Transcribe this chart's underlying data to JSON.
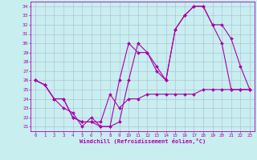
{
  "xlabel": "Windchill (Refroidissement éolien,°C)",
  "bg_color": "#c8eef0",
  "line_color": "#aa00aa",
  "grid_color": "#b0b8d0",
  "xlim": [
    -0.5,
    23.5
  ],
  "ylim": [
    20.5,
    34.5
  ],
  "xticks": [
    0,
    1,
    2,
    3,
    4,
    5,
    6,
    7,
    8,
    9,
    10,
    11,
    12,
    13,
    14,
    15,
    16,
    17,
    18,
    19,
    20,
    21,
    22,
    23
  ],
  "yticks": [
    21,
    22,
    23,
    24,
    25,
    26,
    27,
    28,
    29,
    30,
    31,
    32,
    33,
    34
  ],
  "line1_x": [
    0,
    1,
    2,
    3,
    4,
    5,
    6,
    7,
    8,
    9,
    10,
    11,
    12,
    13,
    14,
    15,
    16,
    17,
    18,
    19,
    20,
    21,
    22,
    23
  ],
  "line1_y": [
    26,
    25.5,
    24,
    24,
    22,
    21.5,
    21.5,
    21,
    21,
    21.5,
    26,
    30,
    29,
    27,
    26,
    31.5,
    33,
    34,
    34,
    32,
    30,
    25,
    25,
    25
  ],
  "line2_x": [
    0,
    1,
    2,
    3,
    4,
    5,
    6,
    7,
    8,
    9,
    10,
    11,
    12,
    13,
    14,
    15,
    16,
    17,
    18,
    19,
    20,
    21,
    22,
    23
  ],
  "line2_y": [
    26,
    25.5,
    24,
    23,
    22.5,
    21,
    22,
    21,
    21,
    26,
    30,
    29,
    29,
    27.5,
    26,
    31.5,
    33,
    34,
    34,
    32,
    32,
    30.5,
    27.5,
    25
  ],
  "line3_x": [
    0,
    1,
    2,
    3,
    4,
    5,
    6,
    7,
    8,
    9,
    10,
    11,
    12,
    13,
    14,
    15,
    16,
    17,
    18,
    19,
    20,
    21,
    22,
    23
  ],
  "line3_y": [
    26,
    25.5,
    24,
    24,
    22,
    21.5,
    21.5,
    21.5,
    24.5,
    23,
    24,
    24,
    24.5,
    24.5,
    24.5,
    24.5,
    24.5,
    24.5,
    25,
    25,
    25,
    25,
    25,
    25
  ]
}
